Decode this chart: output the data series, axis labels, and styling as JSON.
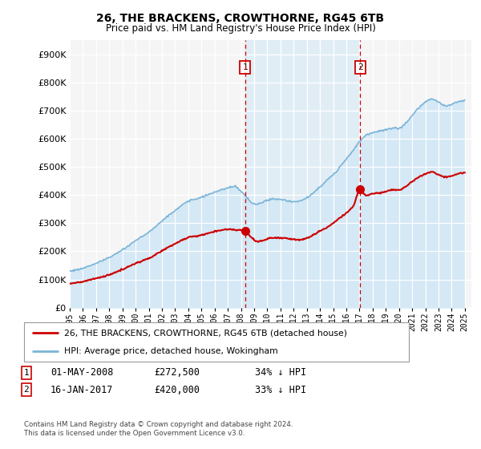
{
  "title": "26, THE BRACKENS, CROWTHORNE, RG45 6TB",
  "subtitle": "Price paid vs. HM Land Registry's House Price Index (HPI)",
  "footer": "Contains HM Land Registry data © Crown copyright and database right 2024.\nThis data is licensed under the Open Government Licence v3.0.",
  "legend_line1": "26, THE BRACKENS, CROWTHORNE, RG45 6TB (detached house)",
  "legend_line2": "HPI: Average price, detached house, Wokingham",
  "transaction1_date": "01-MAY-2008",
  "transaction1_price": "£272,500",
  "transaction1_hpi": "34% ↓ HPI",
  "transaction2_date": "16-JAN-2017",
  "transaction2_price": "£420,000",
  "transaction2_hpi": "33% ↓ HPI",
  "property_color": "#cc0000",
  "hpi_color": "#7ab4d8",
  "hpi_fill_color": "#d4e8f5",
  "vline_color": "#cc0000",
  "background_color": "#ffffff",
  "plot_bg_color": "#f5f5f5",
  "grid_color": "#dddddd",
  "ylim": [
    0,
    950000
  ],
  "yticks": [
    0,
    100000,
    200000,
    300000,
    400000,
    500000,
    600000,
    700000,
    800000,
    900000
  ],
  "xlim_start": 1995.0,
  "xlim_end": 2025.5,
  "transaction1_x": 2008.33,
  "transaction2_x": 2017.04,
  "marker1_y": 272500,
  "marker2_y": 420000,
  "span_color": "#d4e8f5",
  "span_alpha": 0.6
}
